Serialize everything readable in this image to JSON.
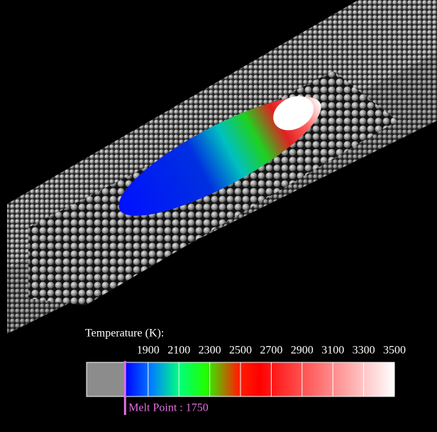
{
  "legend": {
    "title": "Temperature (K):",
    "xlim": [
      1500,
      3500
    ],
    "ticks": [
      1900,
      2100,
      2300,
      2500,
      2700,
      2900,
      3100,
      3300,
      3500
    ],
    "melt_point": {
      "value": 1750,
      "label": "Melt Point : 1750"
    }
  }
}
